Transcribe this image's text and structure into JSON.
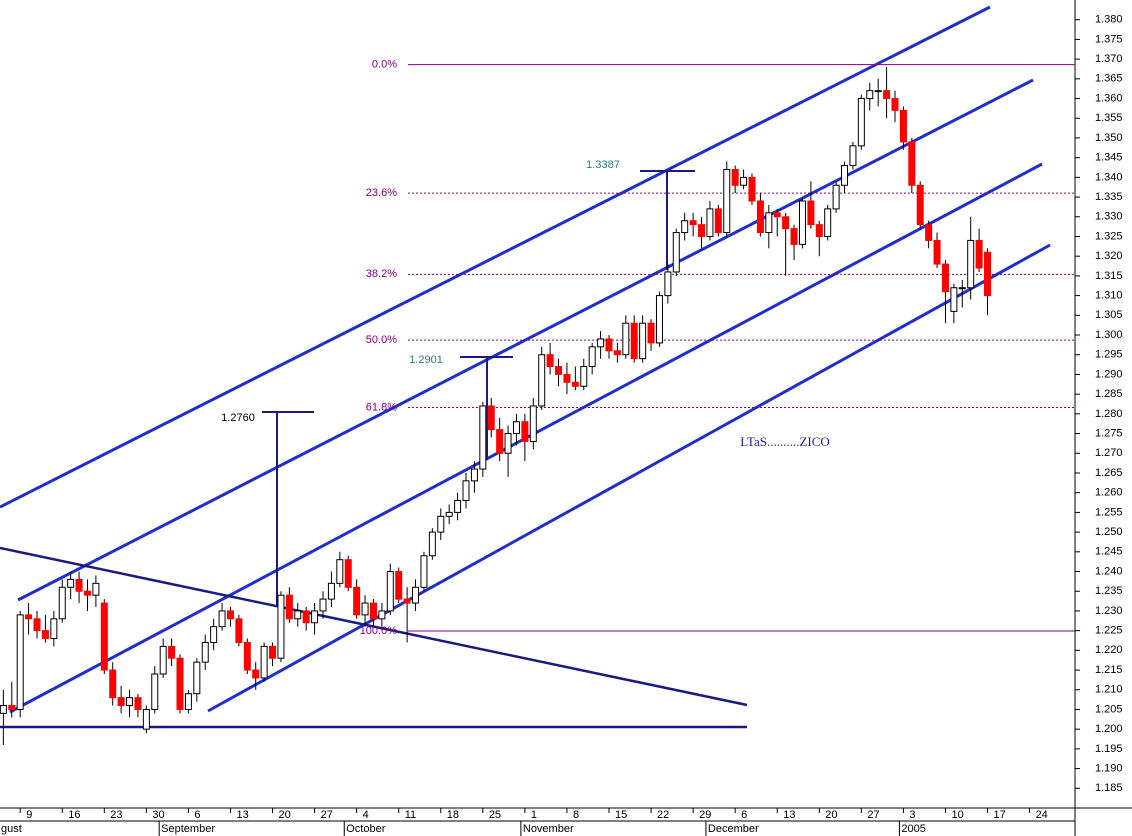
{
  "chart_data": {
    "type": "candlestick",
    "xlim": [
      -2.4,
      125.4
    ],
    "ylim": [
      1.18,
      1.385
    ],
    "yticks": [
      1.185,
      {
        "value": 1.19,
        "label": "1.190"
      },
      1.195,
      {
        "value": 1.2,
        "label": "1.200"
      },
      1.205,
      {
        "value": 1.21,
        "label": "1.210"
      },
      1.215,
      {
        "value": 1.22,
        "label": "1.220"
      },
      1.225,
      {
        "value": 1.23,
        "label": "1.230"
      },
      1.235,
      {
        "value": 1.24,
        "label": "1.240"
      },
      1.245,
      {
        "value": 1.25,
        "label": "1.250"
      },
      1.255,
      {
        "value": 1.26,
        "label": "1.260"
      },
      1.265,
      {
        "value": 1.27,
        "label": "1.270"
      },
      1.275,
      {
        "value": 1.28,
        "label": "1.280"
      },
      1.285,
      {
        "value": 1.29,
        "label": "1.290"
      },
      1.295,
      {
        "value": 1.3,
        "label": "1.300"
      },
      1.305,
      {
        "value": 1.31,
        "label": "1.310"
      },
      1.315,
      {
        "value": 1.32,
        "label": "1.320"
      },
      1.325,
      {
        "value": 1.33,
        "label": "1.330"
      },
      1.335,
      {
        "value": 1.34,
        "label": "1.340"
      },
      1.345,
      {
        "value": 1.35,
        "label": "1.350"
      },
      1.355,
      {
        "value": 1.36,
        "label": "1.360"
      },
      1.365,
      {
        "value": 1.37,
        "label": "1.370"
      },
      1.375,
      {
        "value": 1.38,
        "label": "1.380"
      }
    ],
    "xticks": [
      {
        "value": 0,
        "label": "9"
      },
      {
        "value": 5,
        "label": "16"
      },
      {
        "value": 10,
        "label": "23"
      },
      {
        "value": 15,
        "label": "30"
      },
      {
        "value": 20,
        "label": "6"
      },
      {
        "value": 25,
        "label": "13"
      },
      {
        "value": 30,
        "label": "20"
      },
      {
        "value": 35,
        "label": "27"
      },
      {
        "value": 40,
        "label": "4"
      },
      {
        "value": 45,
        "label": "11"
      },
      {
        "value": 50,
        "label": "18"
      },
      {
        "value": 55,
        "label": "25"
      },
      {
        "value": 60,
        "label": "1"
      },
      {
        "value": 65,
        "label": "8"
      },
      {
        "value": 70,
        "label": "15"
      },
      {
        "value": 75,
        "label": "22"
      },
      {
        "value": 80,
        "label": "29"
      },
      {
        "value": 85,
        "label": "6"
      },
      {
        "value": 90,
        "label": "13"
      },
      {
        "value": 95,
        "label": "20"
      },
      {
        "value": 100,
        "label": "27"
      },
      {
        "value": 105,
        "label": "3"
      },
      {
        "value": 110,
        "label": "10"
      },
      {
        "value": 115,
        "label": "17"
      },
      {
        "value": 120,
        "label": "24"
      }
    ],
    "months": [
      {
        "value": -5,
        "label": "gust"
      },
      {
        "value": 17,
        "label": "September"
      },
      {
        "value": 39,
        "label": "October"
      },
      {
        "value": 60,
        "label": "November"
      },
      {
        "value": 82,
        "label": "December"
      },
      {
        "value": 105,
        "label": "2005"
      }
    ],
    "fib_levels": [
      {
        "value": 1.3686,
        "label": "0.0%"
      },
      {
        "value": 1.336,
        "label": "23.6%"
      },
      {
        "value": 1.3154,
        "label": "38.2%"
      },
      {
        "value": 1.2987,
        "label": "50.0%"
      },
      {
        "value": 1.2816,
        "label": "61.8%"
      },
      {
        "value": 1.2249,
        "label": "100.0%"
      }
    ],
    "annotations": [
      "1.2760",
      "1.2901",
      "1.3387",
      "LTaS..........ZICO"
    ],
    "up_color": "#ffffff",
    "down_color": "#ff0000",
    "x": [
      -2,
      -1,
      0,
      1,
      2,
      3,
      4,
      5,
      6,
      7,
      8,
      9,
      10,
      11,
      12,
      13,
      14,
      15,
      16,
      17,
      18,
      19,
      20,
      21,
      22,
      23,
      24,
      25,
      26,
      27,
      28,
      29,
      30,
      31,
      32,
      33,
      34,
      35,
      36,
      37,
      38,
      39,
      40,
      41,
      42,
      43,
      44,
      45,
      46,
      47,
      48,
      49,
      50,
      51,
      52,
      53,
      54,
      55,
      56,
      57,
      58,
      59,
      60,
      61,
      62,
      63,
      64,
      65,
      66,
      67,
      68,
      69,
      70,
      71,
      72,
      73,
      74,
      75,
      76,
      77,
      78,
      79,
      80,
      81,
      82,
      83,
      84,
      85,
      86,
      87,
      88,
      89,
      90,
      91,
      92,
      93,
      94,
      95,
      96,
      97,
      98,
      99,
      100,
      101,
      102,
      103,
      104,
      105,
      106,
      107,
      108,
      109,
      110,
      111,
      112,
      113,
      114,
      115
    ],
    "ohlc": [
      [
        1.204,
        1.21,
        1.196,
        1.206
      ],
      [
        1.206,
        1.212,
        1.203,
        1.205
      ],
      [
        1.205,
        1.23,
        1.203,
        1.229
      ],
      [
        1.229,
        1.232,
        1.224,
        1.228
      ],
      [
        1.228,
        1.23,
        1.223,
        1.225
      ],
      [
        1.225,
        1.229,
        1.222,
        1.223
      ],
      [
        1.223,
        1.23,
        1.221,
        1.228
      ],
      [
        1.228,
        1.238,
        1.227,
        1.236
      ],
      [
        1.236,
        1.24,
        1.233,
        1.238
      ],
      [
        1.238,
        1.24,
        1.232,
        1.235
      ],
      [
        1.235,
        1.238,
        1.23,
        1.234
      ],
      [
        1.234,
        1.239,
        1.231,
        1.237
      ],
      [
        1.232,
        1.233,
        1.214,
        1.215
      ],
      [
        1.215,
        1.217,
        1.206,
        1.208
      ],
      [
        1.208,
        1.211,
        1.204,
        1.206
      ],
      [
        1.206,
        1.21,
        1.203,
        1.208
      ],
      [
        1.208,
        1.209,
        1.203,
        1.205
      ],
      [
        1.2,
        1.206,
        1.199,
        1.205
      ],
      [
        1.205,
        1.216,
        1.204,
        1.214
      ],
      [
        1.214,
        1.223,
        1.213,
        1.221
      ],
      [
        1.221,
        1.223,
        1.216,
        1.218
      ],
      [
        1.218,
        1.219,
        1.204,
        1.205
      ],
      [
        1.205,
        1.21,
        1.204,
        1.209
      ],
      [
        1.209,
        1.218,
        1.207,
        1.217
      ],
      [
        1.217,
        1.224,
        1.215,
        1.222
      ],
      [
        1.222,
        1.228,
        1.22,
        1.226
      ],
      [
        1.226,
        1.232,
        1.225,
        1.23
      ],
      [
        1.23,
        1.231,
        1.226,
        1.228
      ],
      [
        1.228,
        1.229,
        1.221,
        1.222
      ],
      [
        1.222,
        1.223,
        1.214,
        1.215
      ],
      [
        1.215,
        1.217,
        1.21,
        1.213
      ],
      [
        1.213,
        1.222,
        1.212,
        1.221
      ],
      [
        1.221,
        1.222,
        1.216,
        1.218
      ],
      [
        1.218,
        1.235,
        1.217,
        1.234
      ],
      [
        1.234,
        1.236,
        1.227,
        1.228
      ],
      [
        1.228,
        1.232,
        1.226,
        1.23
      ],
      [
        1.23,
        1.231,
        1.225,
        1.227
      ],
      [
        1.227,
        1.232,
        1.224,
        1.23
      ],
      [
        1.23,
        1.235,
        1.228,
        1.233
      ],
      [
        1.233,
        1.24,
        1.231,
        1.237
      ],
      [
        1.237,
        1.245,
        1.236,
        1.243
      ],
      [
        1.243,
        1.244,
        1.235,
        1.236
      ],
      [
        1.236,
        1.238,
        1.228,
        1.229
      ],
      [
        1.229,
        1.234,
        1.226,
        1.232
      ],
      [
        1.232,
        1.233,
        1.226,
        1.228
      ],
      [
        1.228,
        1.232,
        1.226,
        1.23
      ],
      [
        1.23,
        1.242,
        1.229,
        1.24
      ],
      [
        1.24,
        1.241,
        1.232,
        1.233
      ],
      [
        1.233,
        1.236,
        1.222,
        1.232
      ],
      [
        1.232,
        1.238,
        1.23,
        1.236
      ],
      [
        1.236,
        1.245,
        1.235,
        1.244
      ],
      [
        1.244,
        1.251,
        1.243,
        1.25
      ],
      [
        1.25,
        1.256,
        1.248,
        1.254
      ],
      [
        1.254,
        1.257,
        1.252,
        1.255
      ],
      [
        1.255,
        1.26,
        1.253,
        1.258
      ],
      [
        1.258,
        1.265,
        1.256,
        1.263
      ],
      [
        1.263,
        1.268,
        1.26,
        1.266
      ],
      [
        1.266,
        1.283,
        1.264,
        1.282
      ],
      [
        1.282,
        1.284,
        1.274,
        1.276
      ],
      [
        1.276,
        1.279,
        1.268,
        1.27
      ],
      [
        1.27,
        1.277,
        1.264,
        1.275
      ],
      [
        1.275,
        1.28,
        1.272,
        1.278
      ],
      [
        1.278,
        1.28,
        1.268,
        1.273
      ],
      [
        1.273,
        1.284,
        1.271,
        1.282
      ],
      [
        1.282,
        1.297,
        1.281,
        1.295
      ],
      [
        1.295,
        1.298,
        1.29,
        1.292
      ],
      [
        1.292,
        1.294,
        1.287,
        1.29
      ],
      [
        1.29,
        1.293,
        1.285,
        1.288
      ],
      [
        1.288,
        1.292,
        1.286,
        1.287
      ],
      [
        1.287,
        1.294,
        1.286,
        1.292
      ],
      [
        1.292,
        1.298,
        1.29,
        1.297
      ],
      [
        1.297,
        1.301,
        1.294,
        1.299
      ],
      [
        1.299,
        1.3,
        1.294,
        1.296
      ],
      [
        1.296,
        1.298,
        1.293,
        1.295
      ],
      [
        1.295,
        1.305,
        1.294,
        1.303
      ],
      [
        1.303,
        1.305,
        1.293,
        1.294
      ],
      [
        1.294,
        1.305,
        1.293,
        1.303
      ],
      [
        1.303,
        1.304,
        1.296,
        1.298
      ],
      [
        1.298,
        1.311,
        1.297,
        1.31
      ],
      [
        1.31,
        1.318,
        1.308,
        1.316
      ],
      [
        1.316,
        1.327,
        1.315,
        1.326
      ],
      [
        1.326,
        1.331,
        1.324,
        1.329
      ],
      [
        1.329,
        1.331,
        1.325,
        1.328
      ],
      [
        1.328,
        1.33,
        1.322,
        1.325
      ],
      [
        1.325,
        1.334,
        1.324,
        1.332
      ],
      [
        1.332,
        1.333,
        1.325,
        1.326
      ],
      [
        1.326,
        1.344,
        1.325,
        1.342
      ],
      [
        1.342,
        1.343,
        1.336,
        1.338
      ],
      [
        1.338,
        1.342,
        1.337,
        1.34
      ],
      [
        1.34,
        1.341,
        1.333,
        1.334
      ],
      [
        1.334,
        1.336,
        1.325,
        1.326
      ],
      [
        1.326,
        1.333,
        1.322,
        1.331
      ],
      [
        1.331,
        1.332,
        1.325,
        1.33
      ],
      [
        1.33,
        1.331,
        1.315,
        1.327
      ],
      [
        1.327,
        1.328,
        1.319,
        1.323
      ],
      [
        1.323,
        1.335,
        1.322,
        1.334
      ],
      [
        1.334,
        1.339,
        1.327,
        1.328
      ],
      [
        1.328,
        1.329,
        1.32,
        1.325
      ],
      [
        1.325,
        1.333,
        1.324,
        1.332
      ],
      [
        1.332,
        1.339,
        1.331,
        1.338
      ],
      [
        1.338,
        1.344,
        1.336,
        1.343
      ],
      [
        1.343,
        1.349,
        1.342,
        1.348
      ],
      [
        1.348,
        1.361,
        1.347,
        1.36
      ],
      [
        1.36,
        1.364,
        1.357,
        1.362
      ],
      [
        1.362,
        1.365,
        1.358,
        1.362
      ],
      [
        1.362,
        1.368,
        1.355,
        1.36
      ],
      [
        1.36,
        1.362,
        1.354,
        1.357
      ],
      [
        1.357,
        1.358,
        1.347,
        1.349
      ],
      [
        1.349,
        1.35,
        1.336,
        1.338
      ],
      [
        1.338,
        1.339,
        1.327,
        1.328
      ],
      [
        1.328,
        1.329,
        1.322,
        1.324
      ],
      [
        1.324,
        1.326,
        1.317,
        1.318
      ],
      [
        1.318,
        1.319,
        1.303,
        1.311
      ],
      [
        1.306,
        1.313,
        1.303,
        1.312
      ],
      [
        1.312,
        1.314,
        1.307,
        1.312
      ],
      [
        1.312,
        1.33,
        1.309,
        1.324
      ],
      [
        1.324,
        1.327,
        1.316,
        1.317
      ],
      [
        1.321,
        1.322,
        1.305,
        1.31
      ]
    ]
  }
}
